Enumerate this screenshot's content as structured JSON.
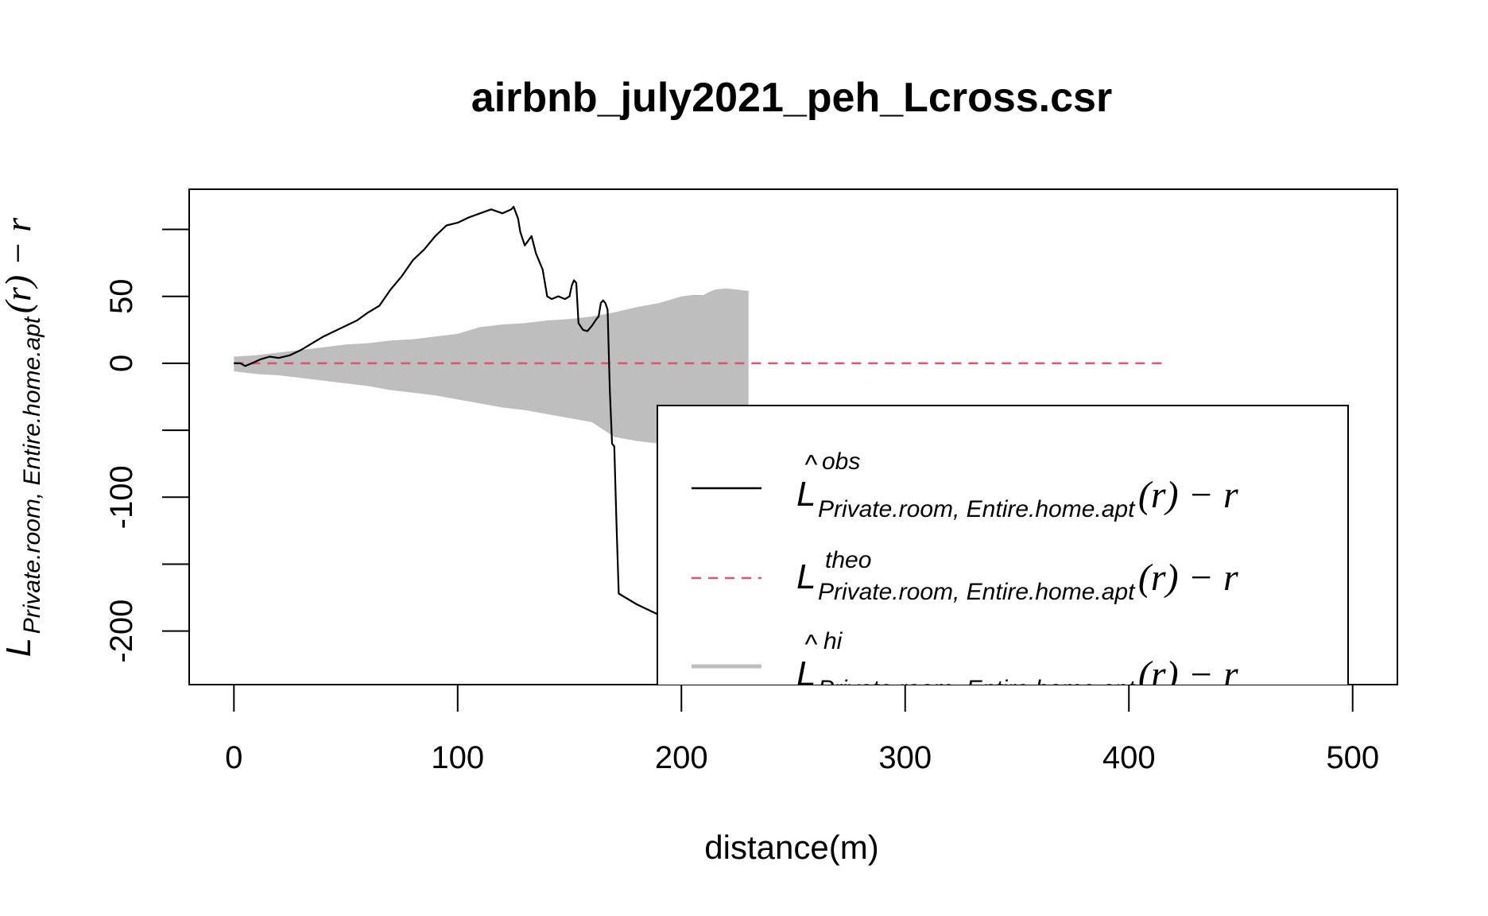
{
  "chart_data": {
    "type": "line",
    "title": "airbnb_july2021_peh_Lcross.csr",
    "xlabel": "distance(m)",
    "ylabel": {
      "main": "L",
      "subscript": "Private.room, Entire.home.apt",
      "suffix": "(r) − r"
    },
    "xlim": [
      -20,
      520
    ],
    "ylim": [
      -240,
      130
    ],
    "x_ticks": [
      0,
      100,
      200,
      300,
      400,
      500
    ],
    "x_tick_labels": [
      "0",
      "100",
      "200",
      "300",
      "400",
      "500"
    ],
    "y_ticks": [
      -200,
      -150,
      -100,
      -50,
      0,
      50,
      100
    ],
    "y_tick_labels": [
      "-200",
      "",
      "-100",
      "",
      "0",
      "50",
      ""
    ],
    "grid": false,
    "legend_placement": "bottom-right",
    "series": [
      {
        "key": "obs",
        "color": "#000000",
        "style": "solid",
        "x": [
          0,
          3,
          5,
          8,
          12,
          16,
          20,
          25,
          30,
          40,
          50,
          55,
          60,
          65,
          70,
          75,
          80,
          85,
          90,
          95,
          100,
          105,
          110,
          115,
          120,
          124,
          125,
          127,
          128,
          130,
          133,
          135,
          138,
          140,
          142,
          145,
          148,
          150,
          151,
          152,
          153,
          154,
          156,
          158,
          160,
          162,
          163,
          164,
          165,
          166,
          167,
          168,
          169,
          170,
          171,
          172,
          180,
          190,
          200,
          210,
          220,
          226
        ],
        "y": [
          0,
          0,
          -2,
          0,
          3,
          5,
          4,
          6,
          10,
          20,
          28,
          32,
          38,
          43,
          55,
          65,
          77,
          85,
          95,
          103,
          105,
          109,
          112,
          115,
          112,
          115,
          117,
          108,
          98,
          88,
          95,
          82,
          70,
          50,
          48,
          50,
          48,
          50,
          58,
          62,
          60,
          30,
          25,
          24,
          28,
          33,
          35,
          45,
          47,
          45,
          40,
          -20,
          -60,
          -62,
          -120,
          -172,
          -180,
          -188,
          -196,
          -204,
          -212,
          -223
        ]
      },
      {
        "key": "theo",
        "color": "#DF536B",
        "style": "dashed",
        "x": [
          0,
          415
        ],
        "y": [
          0,
          0
        ]
      },
      {
        "key": "envelope",
        "color": "#BEBEBE",
        "style": "band",
        "x": [
          0,
          10,
          20,
          30,
          40,
          50,
          60,
          70,
          80,
          90,
          100,
          110,
          120,
          130,
          140,
          150,
          160,
          170,
          180,
          190,
          200,
          205,
          210,
          212,
          215,
          220,
          225,
          230
        ],
        "hi": [
          5,
          6,
          8,
          10,
          12,
          14,
          15,
          17,
          18,
          20,
          22,
          27,
          29,
          30,
          32,
          33,
          35,
          38,
          42,
          45,
          50,
          51,
          51,
          53,
          55,
          56,
          55,
          54
        ],
        "lo": [
          -6,
          -8,
          -9,
          -11,
          -13,
          -15,
          -17,
          -20,
          -22,
          -24,
          -27,
          -30,
          -33,
          -35,
          -38,
          -41,
          -44,
          -55,
          -58,
          -60,
          -62,
          -70,
          -85,
          -92,
          -88,
          -85,
          -82,
          -80
        ]
      }
    ],
    "legend": [
      {
        "key": "obs",
        "main": "L",
        "hat": "^",
        "superscript": "obs",
        "subscript": "Private.room, Entire.home.apt",
        "suffix": "(r) − r"
      },
      {
        "key": "theo",
        "main": "L",
        "hat": "",
        "superscript": "theo",
        "subscript": "Private.room, Entire.home.apt",
        "suffix": "(r) − r"
      },
      {
        "key": "hi",
        "main": "L",
        "hat": "^",
        "superscript": "hi",
        "subscript": "Private.room, Entire.home.apt",
        "suffix": "(r) − r"
      }
    ]
  }
}
